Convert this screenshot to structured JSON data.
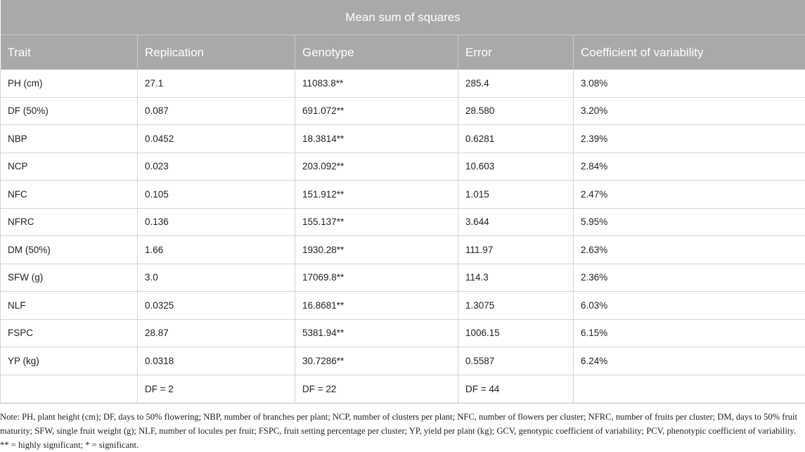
{
  "table": {
    "caption": "Mean sum of squares",
    "columns": [
      "Trait",
      "Replication",
      "Genotype",
      "Error",
      "Coefficient of variability"
    ],
    "rows": [
      [
        "PH (cm)",
        "27.1",
        "11083.8**",
        "285.4",
        "3.08%"
      ],
      [
        "DF (50%)",
        "0.087",
        "691.072**",
        "28.580",
        "3.20%"
      ],
      [
        "NBP",
        "0.0452",
        "18.3814**",
        "0.6281",
        "2.39%"
      ],
      [
        "NCP",
        "0.023",
        "203.092**",
        "10.603",
        "2.84%"
      ],
      [
        "NFC",
        "0.105",
        "151.912**",
        "1.015",
        "2.47%"
      ],
      [
        "NFRC",
        "0.136",
        "155.137**",
        "3.644",
        "5.95%"
      ],
      [
        "DM (50%)",
        "1.66",
        "1930.28**",
        "111.97",
        "2.63%"
      ],
      [
        "SFW (g)",
        "3.0",
        "17069.8**",
        "114.3",
        "2.36%"
      ],
      [
        "NLF",
        "0.0325",
        "16.8681**",
        "1.3075",
        "6.03%"
      ],
      [
        "FSPC",
        "28.87",
        "5381.94**",
        "1006.15",
        "6.15%"
      ],
      [
        "YP (kg)",
        "0.0318",
        "30.7286**",
        "0.5587",
        "6.24%"
      ]
    ],
    "df_row": [
      "",
      "DF = 2",
      "DF = 22",
      "DF = 44",
      ""
    ]
  },
  "note": "Note: PH, plant height (cm); DF, days to 50% flowering; NBP, number of branches per plant; NCP, number of clusters per plant; NFC, number of flowers per cluster; NFRC, number of fruits per cluster; DM, days to 50% fruit maturity; SFW, single fruit weight (g); NLF, number of locules per fruit; FSPC, fruit setting percentage per cluster; YP, yield per plant (kg); GCV, genotypic coefficient of variability; PCV, phenotypic coefficient of variability. ** = highly significant; * = significant."
}
